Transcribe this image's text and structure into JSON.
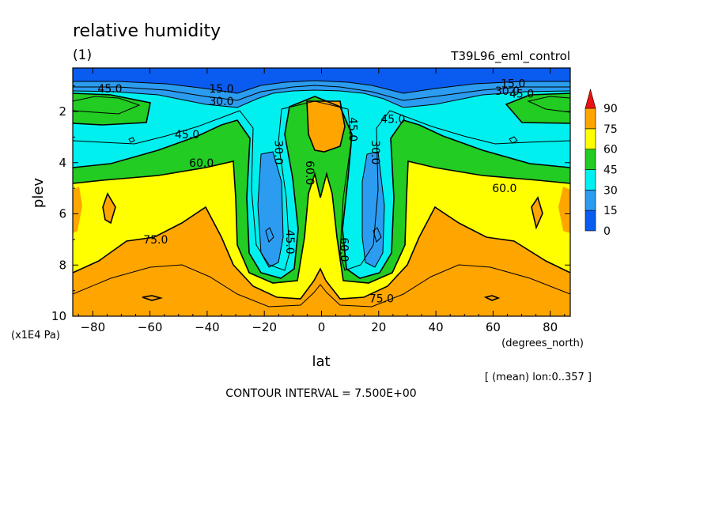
{
  "chart_data": {
    "type": "contour",
    "title": "relative humidity",
    "subtitle": "(1)",
    "dataset_label": "T39L96_eml_control",
    "xlabel": "lat",
    "x_units": "(degrees_north)",
    "ylabel": "plev",
    "y_units": "(x1E4 Pa)",
    "xlim": [
      -87,
      87
    ],
    "ylim": [
      10,
      0.3
    ],
    "x_ticks": [
      -80,
      -60,
      -40,
      -20,
      0,
      20,
      40,
      60,
      80
    ],
    "x_tick_labels": [
      "−80",
      "−60",
      "−40",
      "−20",
      "0",
      "20",
      "40",
      "60",
      "80"
    ],
    "y_ticks": [
      2,
      4,
      6,
      8,
      10
    ],
    "y_tick_labels": [
      "2",
      "4",
      "6",
      "8",
      "10"
    ],
    "averaging_note": "[ (mean) lon:0..357 ]",
    "contour_note": "CONTOUR INTERVAL = 7.500E+00",
    "contour_interval": 7.5,
    "colorbar": {
      "levels": [
        0,
        15,
        30,
        45,
        60,
        75,
        90
      ],
      "labels": [
        "0",
        "15",
        "30",
        "45",
        "60",
        "75",
        "90"
      ],
      "colors": [
        "#0a5cf0",
        "#2b9cf0",
        "#00f0f0",
        "#22cc22",
        "#ffff00",
        "#ffa500"
      ],
      "over_color": "#ee1111"
    },
    "contour_labels": [
      {
        "text": "15.0",
        "lat": -35,
        "p": 1.1
      },
      {
        "text": "30.0",
        "lat": -35,
        "p": 1.6
      },
      {
        "text": "45.0",
        "lat": -74,
        "p": 1.1
      },
      {
        "text": "45.0",
        "lat": -47,
        "p": 2.9
      },
      {
        "text": "60.0",
        "lat": -42,
        "p": 4.0
      },
      {
        "text": "75.0",
        "lat": -58,
        "p": 7.0
      },
      {
        "text": "30.0",
        "lat": -15,
        "p": 3.6
      },
      {
        "text": "60.0",
        "lat": -4,
        "p": 4.4
      },
      {
        "text": "45.0",
        "lat": -11,
        "p": 7.1
      },
      {
        "text": "45.0",
        "lat": 11,
        "p": 2.7
      },
      {
        "text": "30.0",
        "lat": 19,
        "p": 3.6
      },
      {
        "text": "45.0",
        "lat": 25,
        "p": 2.3
      },
      {
        "text": "60.0",
        "lat": 8,
        "p": 7.4
      },
      {
        "text": "75.0",
        "lat": 21,
        "p": 9.3
      },
      {
        "text": "60.0",
        "lat": 64,
        "p": 5.0
      },
      {
        "text": "15.0",
        "lat": 67,
        "p": 0.9
      },
      {
        "text": "30.0",
        "lat": 65,
        "p": 1.2
      },
      {
        "text": "45.0",
        "lat": 70,
        "p": 1.3
      }
    ]
  }
}
